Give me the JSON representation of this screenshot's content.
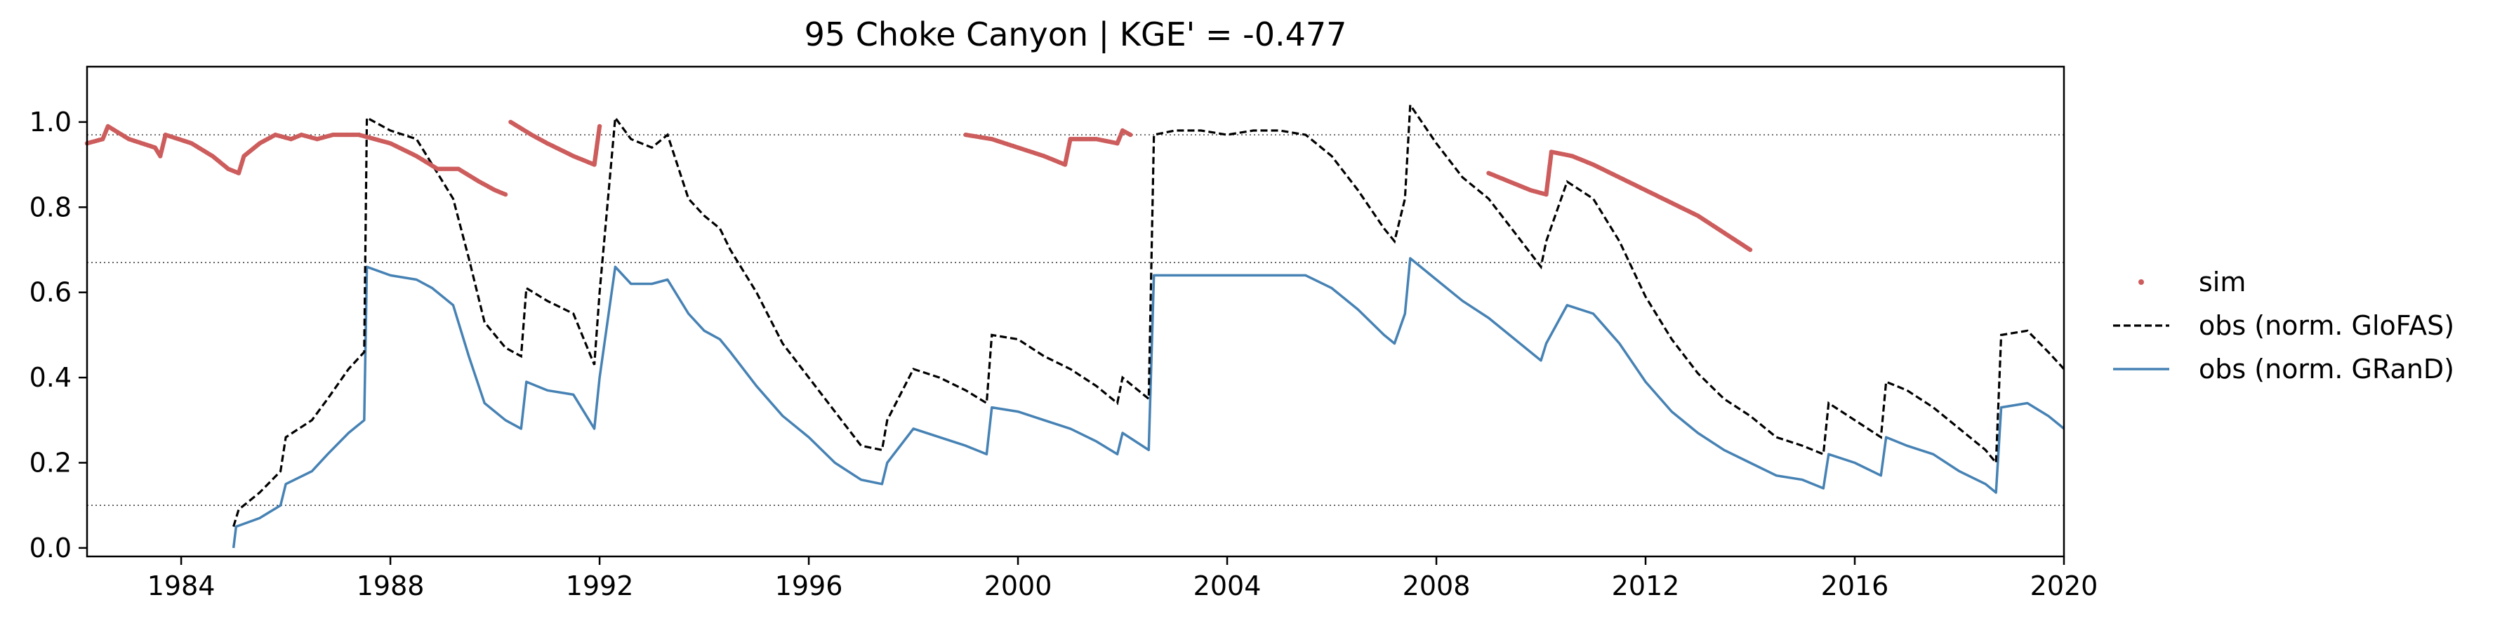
{
  "chart_data": {
    "type": "line",
    "title": "95  Choke Canyon | KGE' = -0.477",
    "xlabel": "",
    "ylabel": "",
    "xlim": [
      1982.2,
      2020.0
    ],
    "ylim": [
      -0.02,
      1.13
    ],
    "x_ticks": [
      1984,
      1988,
      1992,
      1996,
      2000,
      2004,
      2008,
      2012,
      2016,
      2020
    ],
    "y_ticks": [
      0.0,
      0.2,
      0.4,
      0.6,
      0.8,
      1.0
    ],
    "reference_lines": [
      0.97,
      0.67,
      0.1
    ],
    "grid": false,
    "legend_position": "outside-right",
    "series": [
      {
        "name": "sim",
        "style": "dots",
        "color": "#cd5c5c",
        "segments": [
          [
            [
              1982.2,
              0.95
            ],
            [
              1982.5,
              0.96
            ],
            [
              1982.6,
              0.99
            ],
            [
              1983.0,
              0.96
            ],
            [
              1983.5,
              0.94
            ],
            [
              1983.6,
              0.92
            ],
            [
              1983.7,
              0.97
            ],
            [
              1984.2,
              0.95
            ],
            [
              1984.6,
              0.92
            ],
            [
              1984.9,
              0.89
            ],
            [
              1985.1,
              0.88
            ],
            [
              1985.2,
              0.92
            ],
            [
              1985.5,
              0.95
            ],
            [
              1985.8,
              0.97
            ],
            [
              1986.1,
              0.96
            ],
            [
              1986.3,
              0.97
            ],
            [
              1986.6,
              0.96
            ],
            [
              1986.9,
              0.97
            ],
            [
              1987.4,
              0.97
            ]
          ],
          [
            [
              1987.4,
              0.97
            ],
            [
              1988.0,
              0.95
            ],
            [
              1988.5,
              0.92
            ],
            [
              1988.9,
              0.89
            ],
            [
              1989.3,
              0.89
            ],
            [
              1989.7,
              0.86
            ],
            [
              1990.0,
              0.84
            ],
            [
              1990.2,
              0.83
            ]
          ],
          [
            [
              1990.3,
              1.0
            ],
            [
              1990.7,
              0.97
            ],
            [
              1991.0,
              0.95
            ],
            [
              1991.5,
              0.92
            ],
            [
              1991.9,
              0.9
            ],
            [
              1992.0,
              0.99
            ]
          ],
          [
            [
              1999.0,
              0.97
            ],
            [
              1999.5,
              0.96
            ],
            [
              2000.0,
              0.94
            ],
            [
              2000.5,
              0.92
            ],
            [
              2000.9,
              0.9
            ],
            [
              2001.0,
              0.96
            ],
            [
              2001.5,
              0.96
            ],
            [
              2001.9,
              0.95
            ],
            [
              2002.0,
              0.98
            ],
            [
              2002.15,
              0.97
            ]
          ],
          [
            [
              2009.0,
              0.88
            ],
            [
              2009.4,
              0.86
            ],
            [
              2009.8,
              0.84
            ],
            [
              2010.1,
              0.83
            ],
            [
              2010.2,
              0.93
            ],
            [
              2010.6,
              0.92
            ],
            [
              2011.0,
              0.9
            ],
            [
              2011.5,
              0.87
            ],
            [
              2012.0,
              0.84
            ],
            [
              2012.5,
              0.81
            ],
            [
              2013.0,
              0.78
            ],
            [
              2013.5,
              0.74
            ],
            [
              2014.0,
              0.7
            ]
          ]
        ]
      },
      {
        "name": "obs (norm. GloFAS)",
        "style": "dashed",
        "color": "#000000",
        "points": [
          [
            1985.0,
            0.05
          ],
          [
            1985.1,
            0.09
          ],
          [
            1985.5,
            0.13
          ],
          [
            1985.9,
            0.18
          ],
          [
            1986.0,
            0.26
          ],
          [
            1986.5,
            0.3
          ],
          [
            1986.8,
            0.35
          ],
          [
            1987.2,
            0.42
          ],
          [
            1987.5,
            0.46
          ],
          [
            1987.55,
            1.01
          ],
          [
            1988.0,
            0.98
          ],
          [
            1988.5,
            0.96
          ],
          [
            1988.8,
            0.9
          ],
          [
            1989.2,
            0.82
          ],
          [
            1989.5,
            0.68
          ],
          [
            1989.8,
            0.53
          ],
          [
            1990.2,
            0.47
          ],
          [
            1990.5,
            0.45
          ],
          [
            1990.6,
            0.61
          ],
          [
            1991.0,
            0.58
          ],
          [
            1991.5,
            0.55
          ],
          [
            1991.9,
            0.43
          ],
          [
            1992.0,
            0.6
          ],
          [
            1992.3,
            1.01
          ],
          [
            1992.6,
            0.96
          ],
          [
            1993.0,
            0.94
          ],
          [
            1993.3,
            0.97
          ],
          [
            1993.7,
            0.82
          ],
          [
            1994.0,
            0.78
          ],
          [
            1994.3,
            0.75
          ],
          [
            1994.5,
            0.7
          ],
          [
            1995.0,
            0.6
          ],
          [
            1995.5,
            0.48
          ],
          [
            1996.0,
            0.4
          ],
          [
            1996.5,
            0.32
          ],
          [
            1997.0,
            0.24
          ],
          [
            1997.4,
            0.23
          ],
          [
            1997.5,
            0.3
          ],
          [
            1998.0,
            0.42
          ],
          [
            1998.5,
            0.4
          ],
          [
            1999.0,
            0.37
          ],
          [
            1999.4,
            0.34
          ],
          [
            1999.5,
            0.5
          ],
          [
            2000.0,
            0.49
          ],
          [
            2000.5,
            0.45
          ],
          [
            2001.0,
            0.42
          ],
          [
            2001.5,
            0.38
          ],
          [
            2001.9,
            0.34
          ],
          [
            2002.0,
            0.4
          ],
          [
            2002.5,
            0.35
          ],
          [
            2002.6,
            0.97
          ],
          [
            2003.0,
            0.98
          ],
          [
            2003.5,
            0.98
          ],
          [
            2004.0,
            0.97
          ],
          [
            2004.5,
            0.98
          ],
          [
            2005.0,
            0.98
          ],
          [
            2005.5,
            0.97
          ],
          [
            2006.0,
            0.92
          ],
          [
            2006.5,
            0.84
          ],
          [
            2007.0,
            0.75
          ],
          [
            2007.2,
            0.72
          ],
          [
            2007.4,
            0.82
          ],
          [
            2007.5,
            1.04
          ],
          [
            2008.0,
            0.95
          ],
          [
            2008.5,
            0.87
          ],
          [
            2009.0,
            0.82
          ],
          [
            2009.5,
            0.74
          ],
          [
            2010.0,
            0.66
          ],
          [
            2010.1,
            0.72
          ],
          [
            2010.5,
            0.86
          ],
          [
            2011.0,
            0.82
          ],
          [
            2011.5,
            0.72
          ],
          [
            2012.0,
            0.59
          ],
          [
            2012.5,
            0.49
          ],
          [
            2013.0,
            0.41
          ],
          [
            2013.5,
            0.35
          ],
          [
            2014.0,
            0.31
          ],
          [
            2014.5,
            0.26
          ],
          [
            2015.0,
            0.24
          ],
          [
            2015.4,
            0.22
          ],
          [
            2015.5,
            0.34
          ],
          [
            2016.0,
            0.3
          ],
          [
            2016.5,
            0.26
          ],
          [
            2016.6,
            0.39
          ],
          [
            2017.0,
            0.37
          ],
          [
            2017.5,
            0.33
          ],
          [
            2018.0,
            0.28
          ],
          [
            2018.5,
            0.23
          ],
          [
            2018.7,
            0.2
          ],
          [
            2018.8,
            0.5
          ],
          [
            2019.3,
            0.51
          ],
          [
            2019.7,
            0.46
          ],
          [
            2020.0,
            0.42
          ]
        ]
      },
      {
        "name": "obs (norm. GRanD)",
        "style": "solid",
        "color": "#4682b4",
        "points": [
          [
            1985.0,
            0.0
          ],
          [
            1985.05,
            0.05
          ],
          [
            1985.5,
            0.07
          ],
          [
            1985.9,
            0.1
          ],
          [
            1986.0,
            0.15
          ],
          [
            1986.5,
            0.18
          ],
          [
            1986.8,
            0.22
          ],
          [
            1987.2,
            0.27
          ],
          [
            1987.5,
            0.3
          ],
          [
            1987.55,
            0.66
          ],
          [
            1988.0,
            0.64
          ],
          [
            1988.5,
            0.63
          ],
          [
            1988.8,
            0.61
          ],
          [
            1989.2,
            0.57
          ],
          [
            1989.5,
            0.45
          ],
          [
            1989.8,
            0.34
          ],
          [
            1990.2,
            0.3
          ],
          [
            1990.5,
            0.28
          ],
          [
            1990.6,
            0.39
          ],
          [
            1991.0,
            0.37
          ],
          [
            1991.5,
            0.36
          ],
          [
            1991.9,
            0.28
          ],
          [
            1992.0,
            0.4
          ],
          [
            1992.3,
            0.66
          ],
          [
            1992.6,
            0.62
          ],
          [
            1993.0,
            0.62
          ],
          [
            1993.3,
            0.63
          ],
          [
            1993.7,
            0.55
          ],
          [
            1994.0,
            0.51
          ],
          [
            1994.3,
            0.49
          ],
          [
            1994.5,
            0.46
          ],
          [
            1995.0,
            0.38
          ],
          [
            1995.5,
            0.31
          ],
          [
            1996.0,
            0.26
          ],
          [
            1996.5,
            0.2
          ],
          [
            1997.0,
            0.16
          ],
          [
            1997.4,
            0.15
          ],
          [
            1997.5,
            0.2
          ],
          [
            1998.0,
            0.28
          ],
          [
            1998.5,
            0.26
          ],
          [
            1999.0,
            0.24
          ],
          [
            1999.4,
            0.22
          ],
          [
            1999.5,
            0.33
          ],
          [
            2000.0,
            0.32
          ],
          [
            2000.5,
            0.3
          ],
          [
            2001.0,
            0.28
          ],
          [
            2001.5,
            0.25
          ],
          [
            2001.9,
            0.22
          ],
          [
            2002.0,
            0.27
          ],
          [
            2002.5,
            0.23
          ],
          [
            2002.6,
            0.64
          ],
          [
            2003.0,
            0.64
          ],
          [
            2003.5,
            0.64
          ],
          [
            2004.0,
            0.64
          ],
          [
            2004.5,
            0.64
          ],
          [
            2005.0,
            0.64
          ],
          [
            2005.5,
            0.64
          ],
          [
            2006.0,
            0.61
          ],
          [
            2006.5,
            0.56
          ],
          [
            2007.0,
            0.5
          ],
          [
            2007.2,
            0.48
          ],
          [
            2007.4,
            0.55
          ],
          [
            2007.5,
            0.68
          ],
          [
            2008.0,
            0.63
          ],
          [
            2008.5,
            0.58
          ],
          [
            2009.0,
            0.54
          ],
          [
            2009.5,
            0.49
          ],
          [
            2010.0,
            0.44
          ],
          [
            2010.1,
            0.48
          ],
          [
            2010.5,
            0.57
          ],
          [
            2011.0,
            0.55
          ],
          [
            2011.5,
            0.48
          ],
          [
            2012.0,
            0.39
          ],
          [
            2012.5,
            0.32
          ],
          [
            2013.0,
            0.27
          ],
          [
            2013.5,
            0.23
          ],
          [
            2014.0,
            0.2
          ],
          [
            2014.5,
            0.17
          ],
          [
            2015.0,
            0.16
          ],
          [
            2015.4,
            0.14
          ],
          [
            2015.5,
            0.22
          ],
          [
            2016.0,
            0.2
          ],
          [
            2016.5,
            0.17
          ],
          [
            2016.6,
            0.26
          ],
          [
            2017.0,
            0.24
          ],
          [
            2017.5,
            0.22
          ],
          [
            2018.0,
            0.18
          ],
          [
            2018.5,
            0.15
          ],
          [
            2018.7,
            0.13
          ],
          [
            2018.8,
            0.33
          ],
          [
            2019.3,
            0.34
          ],
          [
            2019.7,
            0.31
          ],
          [
            2020.0,
            0.28
          ]
        ]
      }
    ]
  }
}
